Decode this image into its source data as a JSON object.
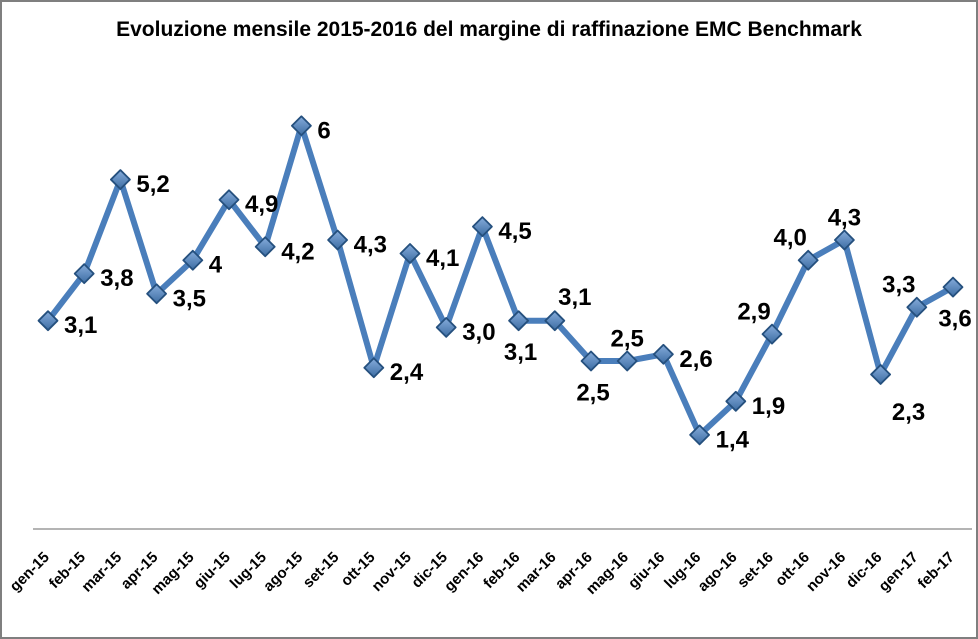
{
  "chart_data": {
    "type": "line",
    "title": "Evoluzione mensile 2015-2016 del margine di raffinazione EMC Benchmark",
    "categories": [
      "gen-15",
      "feb-15",
      "mar-15",
      "apr-15",
      "mag-15",
      "giu-15",
      "lug-15",
      "ago-15",
      "set-15",
      "ott-15",
      "nov-15",
      "dic-15",
      "gen-16",
      "feb-16",
      "mar-16",
      "apr-16",
      "mag-16",
      "giu-16",
      "lug-16",
      "ago-16",
      "set-16",
      "ott-16",
      "nov-16",
      "dic-16",
      "gen-17",
      "feb-17"
    ],
    "values": [
      3.1,
      3.8,
      5.2,
      3.5,
      4,
      4.9,
      4.2,
      6,
      4.3,
      2.4,
      4.1,
      3.0,
      4.5,
      3.1,
      3.1,
      2.5,
      2.5,
      2.6,
      1.4,
      1.9,
      2.9,
      4.0,
      4.3,
      2.3,
      3.3,
      3.6
    ],
    "point_labels": [
      "3,1",
      "3,8",
      "5,2",
      "3,5",
      "4",
      "4,9",
      "4,2",
      "6",
      "4,3",
      "2,4",
      "4,1",
      "3,0",
      "4,5",
      "3,1",
      "3,1",
      "2,5",
      "2,5",
      "2,6",
      "1,4",
      "1,9",
      "2,9",
      "4,0",
      "4,3",
      "2,3",
      "3,3",
      "3,6"
    ],
    "label_positions": [
      "right",
      "right",
      "right",
      "right",
      "right",
      "right",
      "right",
      "right",
      "right",
      "right",
      "right",
      "right",
      "right",
      "below",
      "above-right",
      "below",
      "above",
      "right",
      "right",
      "right",
      "above-left",
      "above-left",
      "above",
      "below-right",
      "above-left",
      "below"
    ],
    "xlabel": "",
    "ylabel": "",
    "ylim": [
      0,
      7
    ],
    "grid": false,
    "legend": false,
    "marker": "diamond",
    "colors": {
      "line": "#4A7EBB",
      "marker_fill_top": "#86ACDB",
      "marker_fill_bottom": "#3D6DA3",
      "marker_border": "#25507E",
      "data_label": "#000000",
      "axis_line": "#9B9B9B",
      "axis_text": "#000000",
      "frame_border": "#7F7F7F",
      "background": "#FFFFFF"
    }
  }
}
